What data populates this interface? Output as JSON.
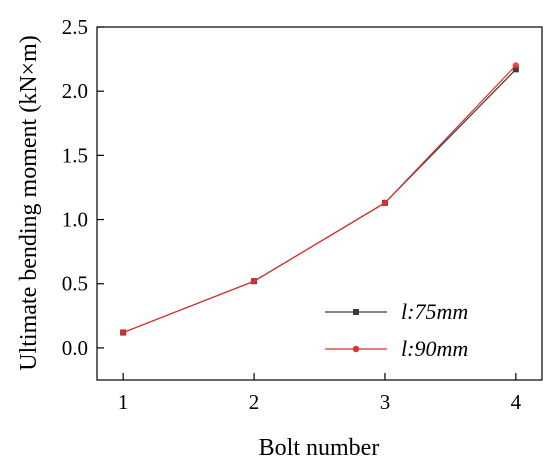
{
  "chart_data": {
    "type": "line",
    "xlabel": "Bolt number",
    "ylabel": "Ultimate bending moment (kN×m)",
    "x": [
      1,
      2,
      3,
      4
    ],
    "xlim": [
      0.8,
      4.2
    ],
    "ylim": [
      -0.25,
      2.5
    ],
    "xticks": [
      "1",
      "2",
      "3",
      "4"
    ],
    "yticks": [
      "0.0",
      "0.5",
      "1.0",
      "1.5",
      "2.0",
      "2.5"
    ],
    "ytick_values": [
      0.0,
      0.5,
      1.0,
      1.5,
      2.0,
      2.5
    ],
    "grid": false,
    "legend_position": "bottom-right",
    "series": [
      {
        "name": "l:75mm",
        "values": [
          0.12,
          0.52,
          1.13,
          2.17
        ],
        "color": "#3a3a3a",
        "marker": "square"
      },
      {
        "name": "l:90mm",
        "values": [
          0.12,
          0.52,
          1.13,
          2.2
        ],
        "color": "#e03030",
        "marker": "circle"
      }
    ]
  }
}
